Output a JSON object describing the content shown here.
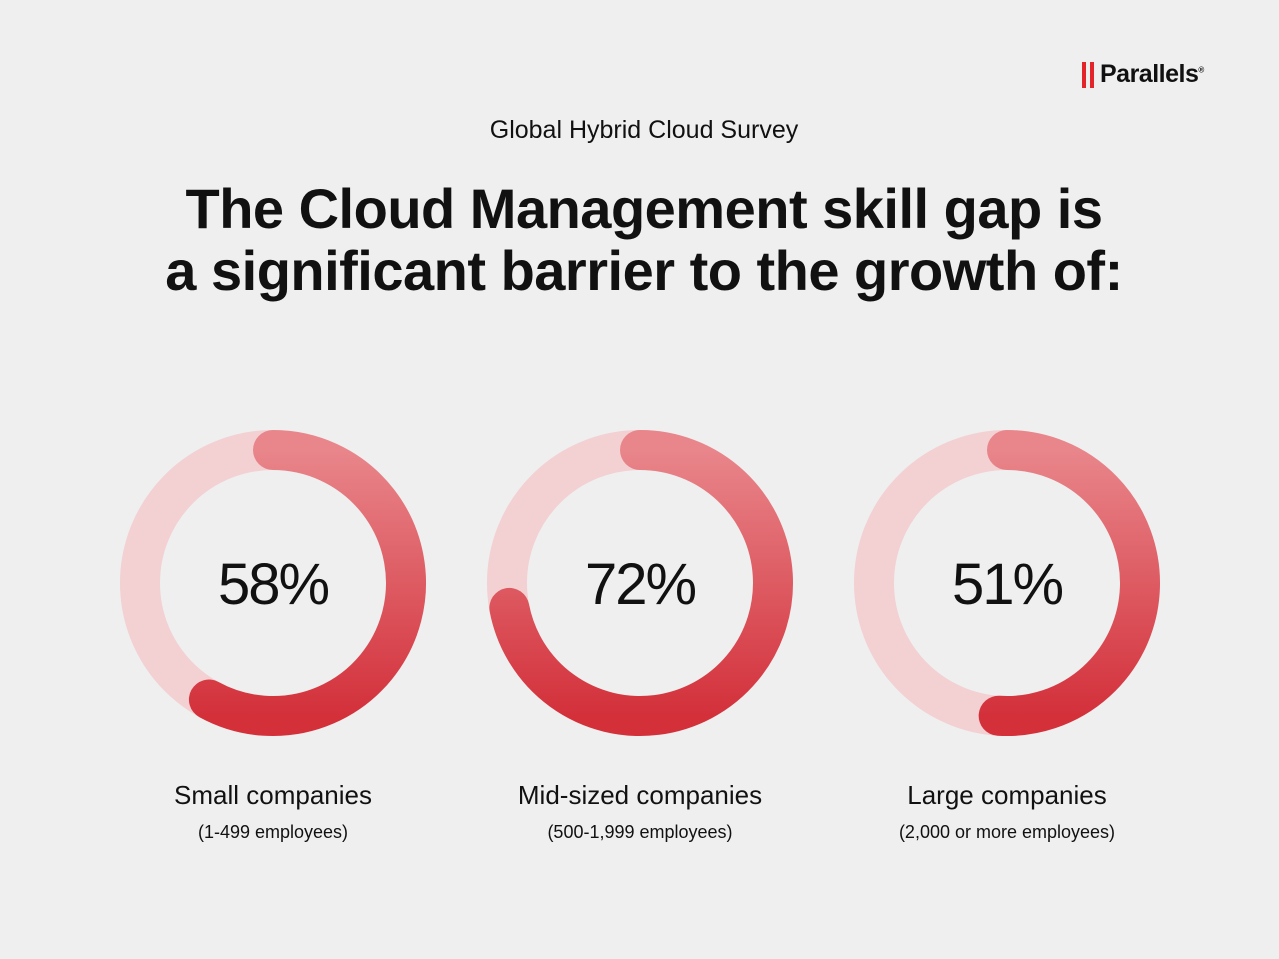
{
  "brand": {
    "name": "Parallels",
    "mark": "®",
    "color": "#e3242b"
  },
  "survey": "Global Hybrid Cloud Survey",
  "title_line1": "The Cloud Management skill gap is",
  "title_line2": "a significant barrier to the growth of:",
  "chart_data": {
    "type": "pie",
    "subtype": "donut",
    "colors": {
      "filled_start": "#e8868b",
      "filled_end": "#d3303a",
      "track": "#f3d0d2"
    },
    "items": [
      {
        "value": 58,
        "label": "58%",
        "category": "Small companies",
        "detail": "(1-499 employees)"
      },
      {
        "value": 72,
        "label": "72%",
        "category": "Mid-sized companies",
        "detail": "(500-1,999 employees)"
      },
      {
        "value": 51,
        "label": "51%",
        "category": "Large companies",
        "detail": "(2,000 or more employees)"
      }
    ]
  }
}
